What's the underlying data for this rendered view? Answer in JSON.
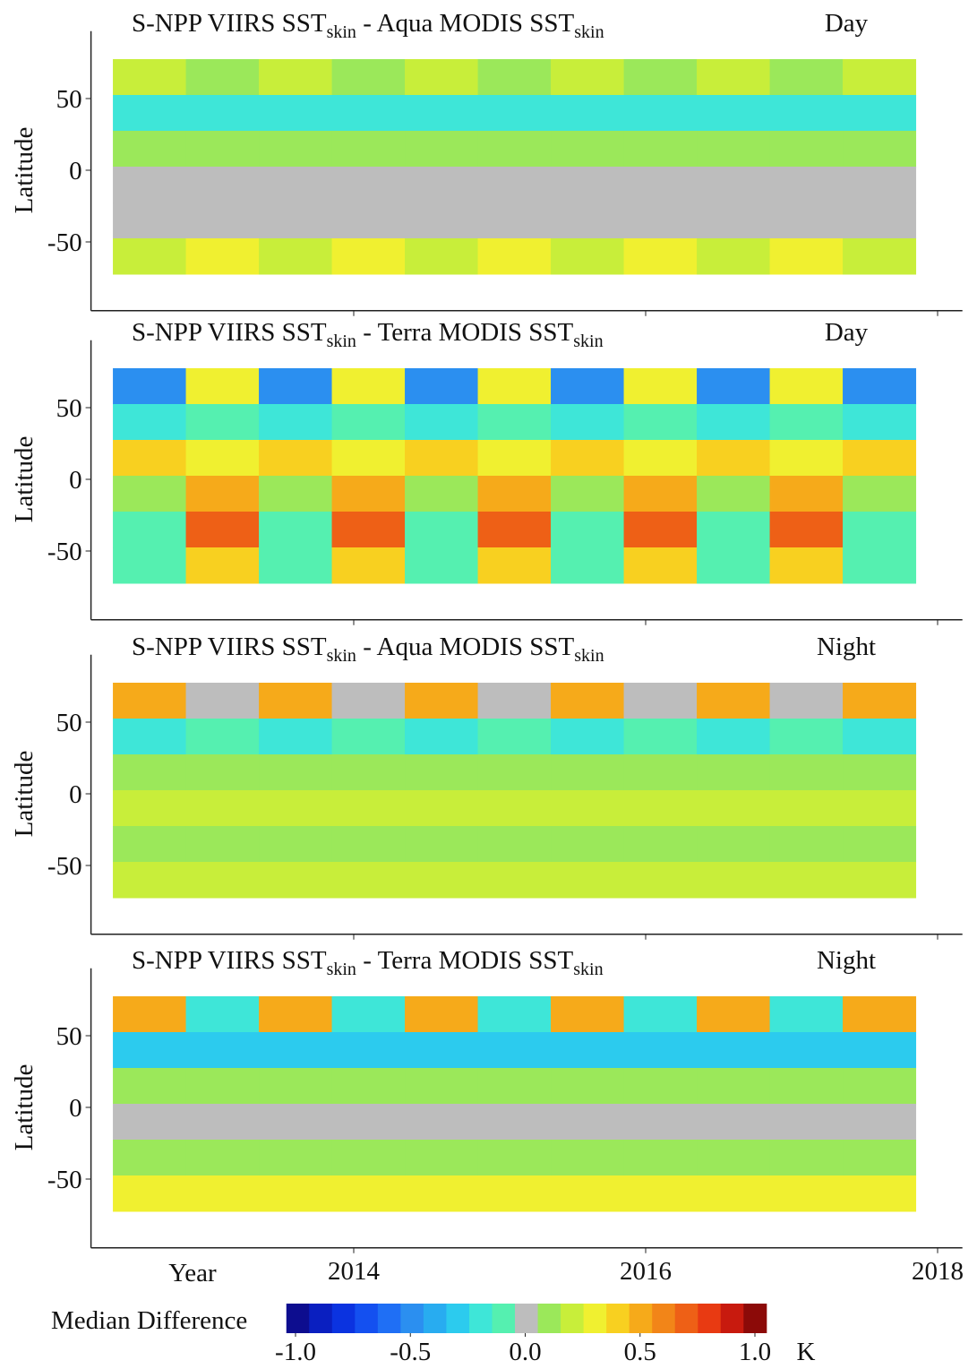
{
  "chart_data": [
    {
      "type": "heatmap",
      "title": [
        "S-NPP VIIRS SST",
        "skin",
        " - Aqua MODIS SST",
        "skin"
      ],
      "period": "Day",
      "ylabel": "Latitude",
      "x": [
        2012.6,
        2013.1,
        2013.6,
        2014.1,
        2014.6,
        2015.1,
        2015.6,
        2016.1,
        2016.6,
        2017.1,
        2017.6
      ],
      "y": [
        65,
        40,
        15,
        -10,
        -35,
        -60
      ],
      "values": [
        [
          0.25,
          0.1,
          0.25,
          0.1,
          0.25,
          0.1,
          0.25,
          0.1,
          0.25,
          0.1,
          0.25
        ],
        [
          -0.15,
          -0.15,
          -0.15,
          -0.15,
          -0.15,
          -0.15,
          -0.15,
          -0.15,
          -0.15,
          -0.15,
          -0.15
        ],
        [
          0.1,
          0.1,
          0.1,
          0.1,
          0.1,
          0.1,
          0.1,
          0.1,
          0.1,
          0.1,
          0.1
        ],
        [
          0.05,
          0.05,
          0.05,
          0.05,
          0.05,
          0.05,
          0.05,
          0.05,
          0.05,
          0.05,
          0.0
        ],
        [
          0.0,
          0.0,
          0.0,
          0.0,
          0.0,
          0.0,
          0.0,
          0.0,
          0.0,
          0.0,
          0.0
        ],
        [
          0.2,
          0.3,
          0.2,
          0.3,
          0.2,
          0.3,
          0.2,
          0.3,
          0.2,
          0.3,
          0.2
        ]
      ],
      "xlim": [
        2012.2,
        2018.17
      ],
      "ylim": [
        -98,
        97
      ],
      "yticks": [
        -50,
        0,
        50
      ]
    },
    {
      "type": "heatmap",
      "title": [
        "S-NPP VIIRS SST",
        "skin",
        " - Terra  MODIS SST",
        "skin"
      ],
      "period": "Day",
      "ylabel": "Latitude",
      "x": [
        2012.6,
        2013.1,
        2013.6,
        2014.1,
        2014.6,
        2015.1,
        2015.6,
        2016.1,
        2016.6,
        2017.1,
        2017.6
      ],
      "y": [
        65,
        40,
        15,
        -10,
        -35,
        -60
      ],
      "values": [
        [
          -0.45,
          0.3,
          -0.45,
          0.3,
          -0.45,
          0.3,
          -0.45,
          0.3,
          -0.45,
          0.3,
          -0.45
        ],
        [
          -0.2,
          -0.1,
          -0.2,
          -0.1,
          -0.2,
          -0.1,
          -0.2,
          -0.1,
          -0.2,
          -0.1,
          -0.2
        ],
        [
          0.45,
          0.3,
          0.45,
          0.3,
          0.45,
          0.3,
          0.45,
          0.3,
          0.45,
          0.3,
          0.45
        ],
        [
          0.1,
          0.55,
          0.1,
          0.55,
          0.1,
          0.55,
          0.1,
          0.55,
          0.1,
          0.55,
          0.1
        ],
        [
          -0.05,
          0.75,
          -0.05,
          0.75,
          -0.05,
          0.75,
          -0.05,
          0.75,
          -0.05,
          0.75,
          -0.05
        ],
        [
          -0.1,
          0.45,
          -0.1,
          0.45,
          -0.1,
          0.45,
          -0.1,
          0.45,
          -0.1,
          0.45,
          -0.1
        ]
      ],
      "xlim": [
        2012.2,
        2018.17
      ],
      "ylim": [
        -98,
        97
      ],
      "yticks": [
        -50,
        0,
        50
      ]
    },
    {
      "type": "heatmap",
      "title": [
        "S-NPP VIIRS SST",
        "skin",
        " - Aqua MODIS SST",
        "skin"
      ],
      "period": "Night",
      "ylabel": "Latitude",
      "x": [
        2012.6,
        2013.1,
        2013.6,
        2014.1,
        2014.6,
        2015.1,
        2015.6,
        2016.1,
        2016.6,
        2017.1,
        2017.6
      ],
      "y": [
        65,
        40,
        15,
        -10,
        -35,
        -60
      ],
      "values": [
        [
          0.55,
          0.0,
          0.55,
          0.0,
          0.55,
          0.0,
          0.55,
          0.0,
          0.55,
          0.0,
          0.55
        ],
        [
          -0.2,
          -0.1,
          -0.2,
          -0.1,
          -0.2,
          -0.1,
          -0.2,
          -0.1,
          -0.2,
          -0.1,
          -0.2
        ],
        [
          0.15,
          0.15,
          0.15,
          0.15,
          0.15,
          0.15,
          0.15,
          0.15,
          0.15,
          0.15,
          0.15
        ],
        [
          0.2,
          0.2,
          0.2,
          0.2,
          0.2,
          0.2,
          0.2,
          0.2,
          0.2,
          0.2,
          0.2
        ],
        [
          0.15,
          0.15,
          0.15,
          0.15,
          0.15,
          0.15,
          0.15,
          0.15,
          0.15,
          0.15,
          0.15
        ],
        [
          0.25,
          0.25,
          0.25,
          0.25,
          0.25,
          0.25,
          0.25,
          0.25,
          0.25,
          0.25,
          0.25
        ]
      ],
      "xlim": [
        2012.2,
        2018.17
      ],
      "ylim": [
        -98,
        97
      ],
      "yticks": [
        -50,
        0,
        50
      ]
    },
    {
      "type": "heatmap",
      "title": [
        "S-NPP VIIRS SST",
        "skin",
        " - Terra  MODIS SST",
        "skin"
      ],
      "period": "Night",
      "ylabel": "Latitude",
      "x": [
        2012.6,
        2013.1,
        2013.6,
        2014.1,
        2014.6,
        2015.1,
        2015.6,
        2016.1,
        2016.6,
        2017.1,
        2017.6
      ],
      "y": [
        65,
        40,
        15,
        -10,
        -35,
        -60
      ],
      "values": [
        [
          0.55,
          -0.15,
          0.55,
          -0.15,
          0.55,
          -0.15,
          0.55,
          -0.15,
          0.55,
          -0.15,
          0.55
        ],
        [
          -0.25,
          -0.25,
          -0.25,
          -0.25,
          -0.25,
          -0.25,
          -0.25,
          -0.25,
          -0.25,
          -0.25,
          -0.25
        ],
        [
          0.1,
          0.1,
          0.1,
          0.1,
          0.1,
          0.1,
          0.1,
          0.1,
          0.1,
          0.1,
          0.1
        ],
        [
          0.05,
          0.05,
          0.05,
          0.05,
          0.05,
          0.05,
          0.05,
          0.05,
          0.05,
          0.05,
          0.05
        ],
        [
          0.15,
          0.15,
          0.15,
          0.15,
          0.15,
          0.15,
          0.15,
          0.15,
          0.15,
          0.15,
          0.15
        ],
        [
          0.3,
          0.35,
          0.3,
          0.35,
          0.3,
          0.35,
          0.3,
          0.35,
          0.3,
          0.35,
          0.3
        ]
      ],
      "xlim": [
        2012.2,
        2018.17
      ],
      "ylim": [
        -98,
        97
      ],
      "yticks": [
        -50,
        0,
        50
      ],
      "xlabel": "Year",
      "xticks": [
        2014,
        2016,
        2018
      ]
    }
  ],
  "colorbar": {
    "label": "Median Difference",
    "unit": "K",
    "lim": [
      -1.04,
      1.05
    ],
    "colors": [
      "#0d0d8f",
      "#0a1fc0",
      "#0b33e0",
      "#1450f0",
      "#1f6ff5",
      "#2b8ff0",
      "#28acf0",
      "#2ccbee",
      "#3ee6d8",
      "#55f0b0",
      "#bdbdbd",
      "#9be85a",
      "#c8ee3a",
      "#f0f030",
      "#f8d020",
      "#f6aa1a",
      "#f28518",
      "#ee6016",
      "#e83a12",
      "#c81a0e",
      "#8c0a08"
    ],
    "ticks": [
      {
        "value": -1,
        "label": "-1.0"
      },
      {
        "value": -0.5,
        "label": "-0.5"
      },
      {
        "value": 0,
        "label": "0.0"
      },
      {
        "value": 0.5,
        "label": "0.5"
      },
      {
        "value": 1,
        "label": "1.0"
      }
    ]
  }
}
